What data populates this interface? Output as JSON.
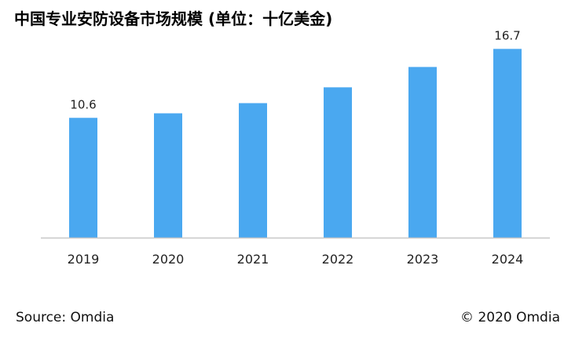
{
  "chart_data": {
    "type": "bar",
    "title": "中国专业安防设备市场规模 (单位：十亿美金)",
    "categories": [
      "2019",
      "2020",
      "2021",
      "2022",
      "2023",
      "2024"
    ],
    "values": [
      10.6,
      11.0,
      11.9,
      13.3,
      15.1,
      16.7
    ],
    "data_labels": [
      "10.6",
      "",
      "",
      "",
      "",
      "16.7"
    ],
    "xlabel": "",
    "ylabel": "",
    "ylim": [
      0,
      19.5
    ],
    "grid": false,
    "legend": "none",
    "bar_color": "#4aa8f0",
    "axis_color": "#c8c8c8"
  },
  "footer": {
    "source": "Source: Omdia",
    "copyright": "© 2020 Omdia"
  }
}
